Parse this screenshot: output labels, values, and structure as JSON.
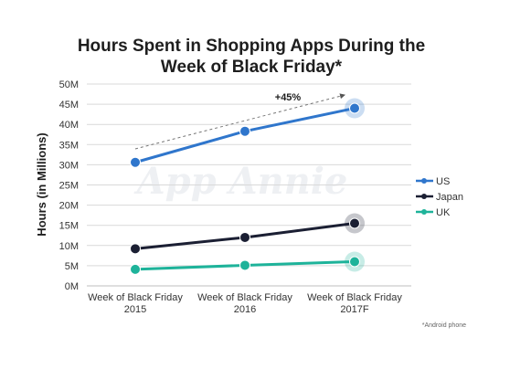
{
  "chart_data": {
    "type": "line",
    "title_lines": [
      "Hours Spent in Shopping Apps During the",
      "Week of Black Friday*"
    ],
    "ylabel": "Hours (in Millions)",
    "xlabel": "",
    "ylim": [
      0,
      50
    ],
    "grid": true,
    "legend_position": "right",
    "y_ticks": [
      "0M",
      "5M",
      "10M",
      "15M",
      "20M",
      "25M",
      "30M",
      "35M",
      "40M",
      "45M",
      "50M"
    ],
    "categories": [
      [
        "Week of Black Friday",
        "2015"
      ],
      [
        "Week of Black Friday",
        "2016"
      ],
      [
        "Week of Black Friday",
        "2017F"
      ]
    ],
    "series": [
      {
        "name": "US",
        "color": "#2f76cc",
        "values": [
          30.6,
          38.3,
          44.0
        ]
      },
      {
        "name": "Japan",
        "color": "#1b1f33",
        "values": [
          9.2,
          12.0,
          15.5
        ]
      },
      {
        "name": "UK",
        "color": "#1eb39a",
        "values": [
          4.1,
          5.1,
          6.0
        ]
      }
    ],
    "annotation": "+45%",
    "watermark": "App Annie",
    "footnote": "*Android phone"
  }
}
